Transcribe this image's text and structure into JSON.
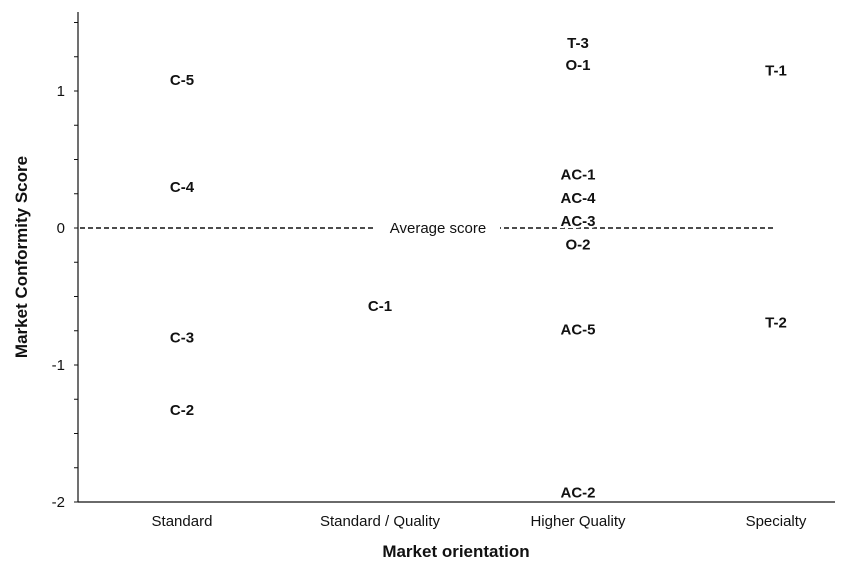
{
  "chart_data": {
    "type": "scatter",
    "title": "",
    "xlabel": "Market orientation",
    "ylabel": "Market Conformity Score",
    "categories": [
      "Standard",
      "Standard / Quality",
      "Higher Quality",
      "Specialty"
    ],
    "yticks": [
      "1",
      "0",
      "-1",
      "-2"
    ],
    "ylim": [
      -2,
      1.5
    ],
    "grid": false,
    "reference_line": {
      "y": 0,
      "label": "Average score",
      "style": "dashed"
    },
    "points": [
      {
        "label": "C-5",
        "category": "Standard",
        "y": 1.08
      },
      {
        "label": "C-4",
        "category": "Standard",
        "y": 0.3
      },
      {
        "label": "C-3",
        "category": "Standard",
        "y": -0.8
      },
      {
        "label": "C-2",
        "category": "Standard",
        "y": -1.33
      },
      {
        "label": "C-1",
        "category": "Standard / Quality",
        "y": -0.57
      },
      {
        "label": "T-3",
        "category": "Higher Quality",
        "y": 1.35
      },
      {
        "label": "O-1",
        "category": "Higher Quality",
        "y": 1.19
      },
      {
        "label": "AC-1",
        "category": "Higher Quality",
        "y": 0.39
      },
      {
        "label": "AC-4",
        "category": "Higher Quality",
        "y": 0.22
      },
      {
        "label": "AC-3",
        "category": "Higher Quality",
        "y": 0.05
      },
      {
        "label": "O-2",
        "category": "Higher Quality",
        "y": -0.12
      },
      {
        "label": "AC-5",
        "category": "Higher Quality",
        "y": -0.74
      },
      {
        "label": "AC-2",
        "category": "Higher Quality",
        "y": -1.93
      },
      {
        "label": "T-1",
        "category": "Specialty",
        "y": 1.15
      },
      {
        "label": "T-2",
        "category": "Specialty",
        "y": -0.69
      }
    ]
  }
}
